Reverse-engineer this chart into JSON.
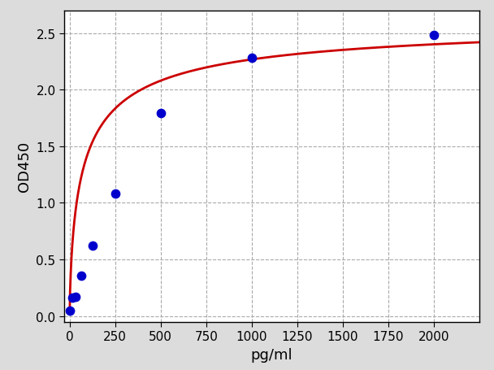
{
  "x_data": [
    0,
    15.625,
    31.25,
    62.5,
    125,
    250,
    500,
    1000,
    2000
  ],
  "y_data": [
    0.05,
    0.16,
    0.17,
    0.36,
    0.62,
    1.08,
    1.79,
    2.28,
    2.48
  ],
  "dot_color": "#0000cc",
  "line_color": "#cc0000",
  "background_color": "#dcdcdc",
  "plot_bg_color": "#ffffff",
  "xlabel": "pg/ml",
  "ylabel": "OD450",
  "xlim": [
    -30,
    2250
  ],
  "ylim": [
    -0.05,
    2.7
  ],
  "xticks": [
    0,
    250,
    500,
    750,
    1000,
    1250,
    1500,
    1750,
    2000
  ],
  "yticks": [
    0.0,
    0.5,
    1.0,
    1.5,
    2.0,
    2.5
  ],
  "grid_color": "#aaaaaa",
  "dot_size": 55,
  "line_width": 2.0,
  "xlabel_fontsize": 13,
  "ylabel_fontsize": 13,
  "tick_fontsize": 11
}
